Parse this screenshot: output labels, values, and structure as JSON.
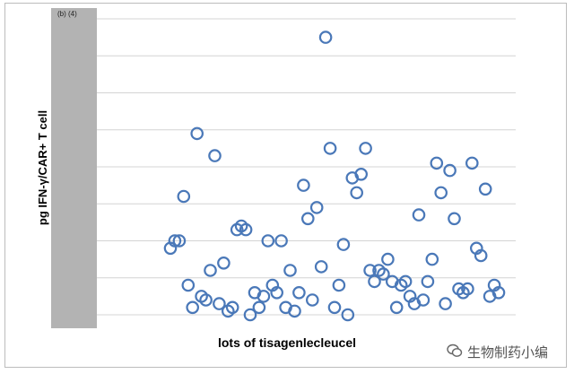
{
  "chart_data": {
    "type": "scatter",
    "title": "",
    "panel_label": "(b) (4)",
    "xlabel": "lots of tisagenlecleucel",
    "ylabel": "pg IFN-γ/CAR+ T cell",
    "ylim": [
      0,
      8
    ],
    "y_ticks": [
      0,
      1,
      2,
      3,
      4,
      5,
      6,
      7,
      8
    ],
    "y_tick_labels_redacted": true,
    "grid": true,
    "legend": "none",
    "marker": "open-circle",
    "marker_color": "#4a78b8",
    "x": [
      1,
      2,
      3,
      4,
      5,
      6,
      7,
      8,
      9,
      10,
      11,
      12,
      13,
      14,
      15,
      16,
      17,
      18,
      19,
      20,
      21,
      22,
      23,
      24,
      25,
      26,
      27,
      28,
      29,
      30,
      31,
      32,
      33,
      34,
      35,
      36,
      37,
      38,
      39,
      40,
      41,
      42,
      43,
      44,
      45,
      46,
      47,
      48,
      49,
      50,
      51,
      52,
      53,
      54,
      55,
      56,
      57,
      58,
      59,
      60,
      61,
      62,
      63,
      64,
      65,
      66,
      67,
      68,
      69,
      70,
      71,
      72,
      73,
      74,
      75
    ],
    "values": [
      1.8,
      2.0,
      2.0,
      3.2,
      0.8,
      0.2,
      4.9,
      0.5,
      0.4,
      1.2,
      4.3,
      0.3,
      1.4,
      0.1,
      0.2,
      2.3,
      2.4,
      2.3,
      0.0,
      0.6,
      0.2,
      0.5,
      2.0,
      0.8,
      0.6,
      2.0,
      0.2,
      1.2,
      0.1,
      0.6,
      3.5,
      2.6,
      0.4,
      2.9,
      1.3,
      7.5,
      4.5,
      0.2,
      0.8,
      1.9,
      0.0,
      3.7,
      3.3,
      3.8,
      4.5,
      1.2,
      0.9,
      1.2,
      1.1,
      1.5,
      0.9,
      0.2,
      0.8,
      0.9,
      0.5,
      0.3,
      2.7,
      0.4,
      0.9,
      1.5,
      4.1,
      3.3,
      0.3,
      3.9,
      2.6,
      0.7,
      0.6,
      0.7,
      4.1,
      1.8,
      1.6,
      3.4,
      0.5,
      0.8,
      0.6
    ]
  },
  "watermark": {
    "icon": "wechat-icon",
    "text": "生物制药小编"
  }
}
